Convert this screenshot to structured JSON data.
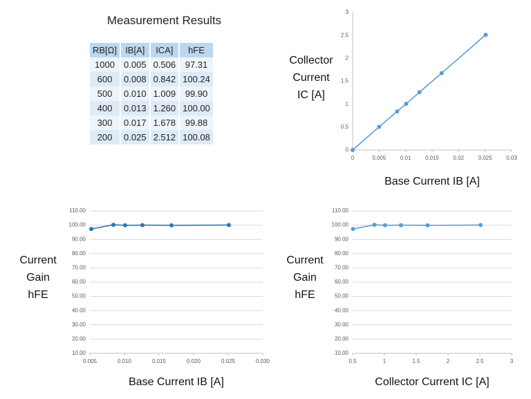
{
  "table": {
    "title": "Measurement Results",
    "header": [
      "RB[Ω]",
      "IB[A]",
      "ICA]",
      "hFE"
    ],
    "rows": [
      [
        "1000",
        "0.005",
        "0.506",
        "97.31"
      ],
      [
        "600",
        "0.008",
        "0.842",
        "100.24"
      ],
      [
        "500",
        "0.010",
        "1.009",
        "99.90"
      ],
      [
        "400",
        "0.013",
        "1.260",
        "100.00"
      ],
      [
        "300",
        "0.017",
        "1.678",
        "99.88"
      ],
      [
        "200",
        "0.025",
        "2.512",
        "100.08"
      ]
    ]
  },
  "chart_data": [
    {
      "type": "line",
      "xlabel": "Base Current IB [A]",
      "ylabel": [
        "Collector",
        "Current",
        "IC [A]"
      ],
      "x": [
        0,
        0.005,
        0.0084,
        0.0101,
        0.0126,
        0.0168,
        0.0251
      ],
      "values": [
        0,
        0.506,
        0.842,
        1.009,
        1.26,
        1.678,
        2.512
      ],
      "color": "#5b9bd5",
      "grid": false,
      "xlim": [
        0,
        0.03
      ],
      "xticks": [
        0,
        0.005,
        0.01,
        0.015,
        0.02,
        0.025,
        0.03
      ],
      "ylim": [
        0,
        3
      ],
      "yticks": [
        0,
        0.5,
        1,
        1.5,
        2,
        2.5,
        3
      ]
    },
    {
      "type": "line",
      "xlabel": "Base Current IB [A]",
      "ylabel": [
        "Current",
        "Gain",
        "hFE"
      ],
      "x": [
        0.0052,
        0.0084,
        0.0101,
        0.0126,
        0.0168,
        0.0251
      ],
      "values": [
        97.31,
        100.24,
        99.9,
        100,
        99.88,
        100.08
      ],
      "color": "#2e75b6",
      "grid": true,
      "xlim": [
        0.005,
        0.03
      ],
      "xticks": [
        {
          "value": 0.005,
          "label": "0.005"
        },
        {
          "value": 0.01,
          "label": "0.010"
        },
        {
          "value": 0.015,
          "label": "0.015"
        },
        {
          "value": 0.02,
          "label": "0.020"
        },
        {
          "value": 0.025,
          "label": "0.025"
        },
        {
          "value": 0.03,
          "label": "0.030"
        }
      ],
      "ylim": [
        10,
        110
      ],
      "yticks": [
        {
          "value": 10,
          "label": "10.00"
        },
        {
          "value": 20,
          "label": "20.00"
        },
        {
          "value": 30,
          "label": "30.00"
        },
        {
          "value": 40,
          "label": "40.00"
        },
        {
          "value": 50,
          "label": "50.00"
        },
        {
          "value": 60,
          "label": "60.00"
        },
        {
          "value": 70,
          "label": "70.00"
        },
        {
          "value": 80,
          "label": "80.00"
        },
        {
          "value": 90,
          "label": "90.00"
        },
        {
          "value": 100,
          "label": "100.00"
        },
        {
          "value": 110,
          "label": "110.00"
        }
      ]
    },
    {
      "type": "line",
      "xlabel": "Collector Current IC [A]",
      "ylabel": [
        "Current",
        "Gain",
        "hFE"
      ],
      "x": [
        0.506,
        0.842,
        1.009,
        1.26,
        1.678,
        2.512
      ],
      "values": [
        97.31,
        100.24,
        99.9,
        100,
        99.88,
        100.08
      ],
      "color": "#5b9bd5",
      "grid": true,
      "xlim": [
        0.5,
        3
      ],
      "xticks": [
        0.5,
        1,
        1.5,
        2,
        2.5,
        3
      ],
      "ylim": [
        10,
        110
      ],
      "yticks": [
        {
          "value": 10,
          "label": "10.00"
        },
        {
          "value": 20,
          "label": "20.00"
        },
        {
          "value": 30,
          "label": "30.00"
        },
        {
          "value": 40,
          "label": "40.00"
        },
        {
          "value": 50,
          "label": "50.00"
        },
        {
          "value": 60,
          "label": "60.00"
        },
        {
          "value": 70,
          "label": "70.00"
        },
        {
          "value": 80,
          "label": "80.00"
        },
        {
          "value": 90,
          "label": "90.00"
        },
        {
          "value": 100,
          "label": "100.00"
        },
        {
          "value": 110,
          "label": "110.00"
        }
      ]
    }
  ]
}
